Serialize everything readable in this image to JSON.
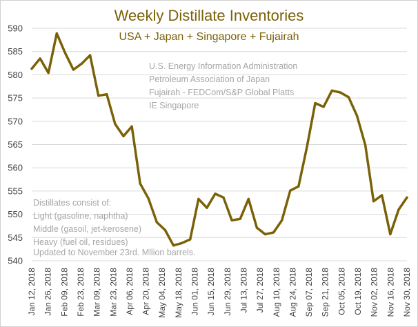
{
  "colors": {
    "line": "#7a6108",
    "title": "#7a6108",
    "grid": "#d9d9d9",
    "axis_text": "#404040",
    "note_text": "#a6a6a6"
  },
  "chart_data": {
    "type": "line",
    "title": "Weekly Distillate Inventories",
    "subtitle": "USA + Japan + Singapore + Fujairah",
    "xlabel": "",
    "ylabel": "",
    "ylim": [
      540,
      590
    ],
    "y_ticks": [
      540,
      545,
      550,
      555,
      560,
      565,
      570,
      575,
      580,
      585,
      590
    ],
    "x_tick_labels": [
      "Jan 12, 2018",
      "Jan 26, 2018",
      "Feb 09, 2018",
      "Feb 23, 2018",
      "Mar 09, 2018",
      "Mar 23, 2018",
      "Apr 06, 2018",
      "Apr 20, 2018",
      "May 04, 2018",
      "May 18, 2018",
      "Jun 01, 2018",
      "Jun 15, 2018",
      "Jun 29, 2018",
      "Jul 13, 2018",
      "Jul 27, 2018",
      "Aug 10, 2018",
      "Aug 24, 2018",
      "Sep 07, 2018",
      "Sep 21, 2018",
      "Oct 05, 2018",
      "Oct 19, 2018",
      "Nov 02, 2018",
      "Nov 16, 2018",
      "Nov 30, 2018"
    ],
    "legend": "none",
    "grid": true,
    "series": [
      {
        "name": "Distillate inventories",
        "values": [
          581.3,
          583.5,
          580.4,
          588.9,
          584.7,
          581.1,
          582.4,
          584.2,
          575.5,
          575.8,
          569.4,
          566.8,
          568.9,
          556.6,
          553.4,
          548.3,
          546.6,
          543.3,
          543.8,
          544.6,
          553.3,
          551.4,
          554.4,
          553.6,
          548.7,
          549.0,
          553.3,
          547.1,
          545.7,
          546.1,
          548.7,
          555.1,
          556.0,
          564.4,
          573.9,
          573.1,
          576.6,
          576.2,
          575.2,
          571.2,
          564.9,
          552.8,
          554.1,
          545.7,
          551.0,
          553.6
        ]
      }
    ]
  },
  "sources": [
    "U.S. Energy Information Administration",
    "Petroleum Association of Japan",
    "Fujairah - FEDCom/S&P Global Platts",
    "IE Singapore"
  ],
  "notes": [
    "Distillates consist of:",
    "Light (gasoline, naphtha)",
    "Middle (gasoil, jet-kerosene)",
    "Heavy (fuel oil, residues)",
    "Updated to November 23rd. Mllion barrels."
  ]
}
